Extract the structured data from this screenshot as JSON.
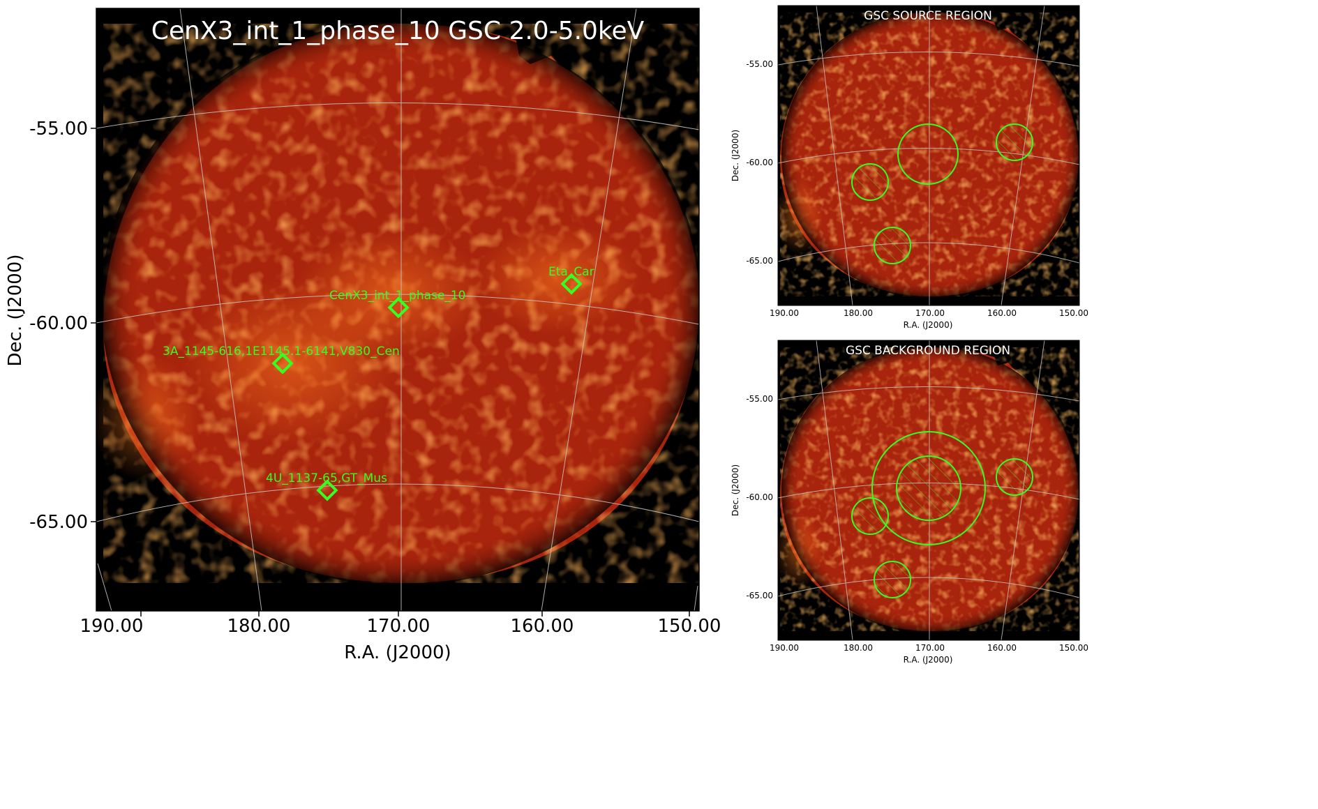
{
  "main_panel": {
    "title": "CenX3_int_1_phase_10 GSC 2.0-5.0keV",
    "xlabel": "R.A. (J2000)",
    "ylabel": "Dec. (J2000)",
    "x_ticks": [
      "190.00",
      "180.00",
      "170.00",
      "160.00",
      "150.00"
    ],
    "y_ticks": [
      "-55.00",
      "-60.00",
      "-65.00"
    ],
    "sources": [
      {
        "label": "Eta_Car"
      },
      {
        "label": "CenX3_int_1_phase_10"
      },
      {
        "label": "3A_1145-616,1E1145.1-6141,V830_Cen"
      },
      {
        "label": "4U_1137-65,GT_Mus"
      }
    ]
  },
  "source_panel": {
    "title": "GSC SOURCE REGION",
    "xlabel": "R.A. (J2000)",
    "ylabel": "Dec. (J2000)",
    "x_ticks": [
      "190.00",
      "180.00",
      "170.00",
      "160.00",
      "150.00"
    ],
    "y_ticks": [
      "-55.00",
      "-60.00",
      "-65.00"
    ]
  },
  "background_panel": {
    "title": "GSC BACKGROUND REGION",
    "xlabel": "R.A. (J2000)",
    "ylabel": "Dec. (J2000)",
    "x_ticks": [
      "190.00",
      "180.00",
      "170.00",
      "160.00",
      "150.00"
    ],
    "y_ticks": [
      "-55.00",
      "-60.00",
      "-65.00"
    ]
  },
  "colors": {
    "background": "#000000",
    "image_base": "#a8240c",
    "image_bright": "#ff6a1a",
    "grid": "#c8c8c8",
    "region": "#33ff22",
    "title": "#ffffff"
  }
}
